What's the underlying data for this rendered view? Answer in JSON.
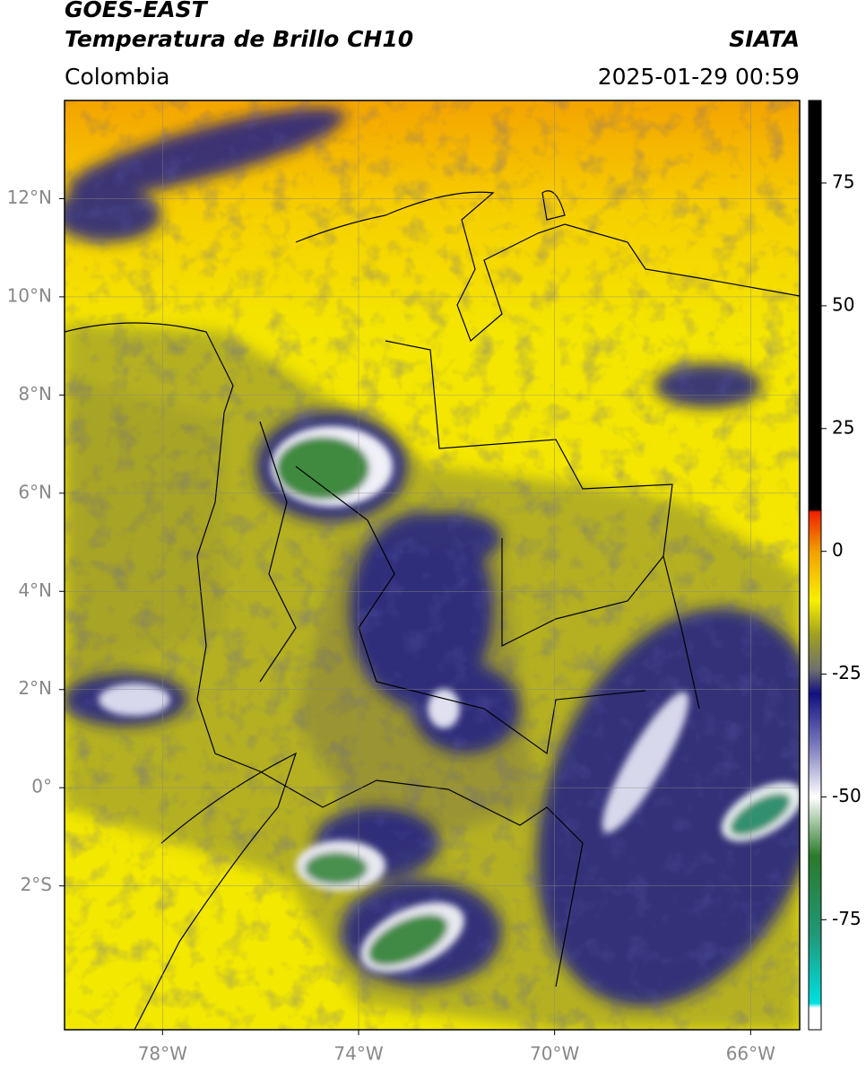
{
  "header": {
    "title": "GOES-EAST",
    "subtitle": "Temperatura de Brillo CH10",
    "source": "SIATA",
    "region": "Colombia",
    "timestamp": "2025-01-29 00:59"
  },
  "map": {
    "lonlim": [
      -80,
      -65
    ],
    "latlim": [
      -4.93,
      14
    ],
    "lon_ticks": [
      {
        "value": -78,
        "label": "78°W"
      },
      {
        "value": -74,
        "label": "74°W"
      },
      {
        "value": -70,
        "label": "70°W"
      },
      {
        "value": -66,
        "label": "66°W"
      }
    ],
    "lat_ticks": [
      {
        "value": 12,
        "label": "12°N"
      },
      {
        "value": 10,
        "label": "10°N"
      },
      {
        "value": 8,
        "label": "8°N"
      },
      {
        "value": 6,
        "label": "6°N"
      },
      {
        "value": 4,
        "label": "4°N"
      },
      {
        "value": 2,
        "label": "2°N"
      },
      {
        "value": 0,
        "label": "0°"
      },
      {
        "value": -2,
        "label": "2°S"
      }
    ],
    "grid": true
  },
  "colorbar": {
    "lim": [
      -97.4,
      91.8
    ],
    "ticks": [
      75,
      50,
      25,
      0,
      -25,
      -50,
      -75
    ],
    "stops": [
      {
        "value": -97.4,
        "color": "#ffffff"
      },
      {
        "value": -93,
        "color": "#ffffff"
      },
      {
        "value": -92,
        "color": "#00e0e0"
      },
      {
        "value": -78,
        "color": "#209878"
      },
      {
        "value": -62,
        "color": "#2a7a2a"
      },
      {
        "value": -50,
        "color": "#ffffff"
      },
      {
        "value": -40,
        "color": "#8080c0"
      },
      {
        "value": -29,
        "color": "#101080"
      },
      {
        "value": -24,
        "color": "#707070"
      },
      {
        "value": -17,
        "color": "#a0a020"
      },
      {
        "value": -10,
        "color": "#f8f000"
      },
      {
        "value": 0,
        "color": "#f0a000"
      },
      {
        "value": 8,
        "color": "#f02000"
      },
      {
        "value": 8.5,
        "color": "#000000"
      },
      {
        "value": 91.8,
        "color": "#000000"
      }
    ]
  }
}
